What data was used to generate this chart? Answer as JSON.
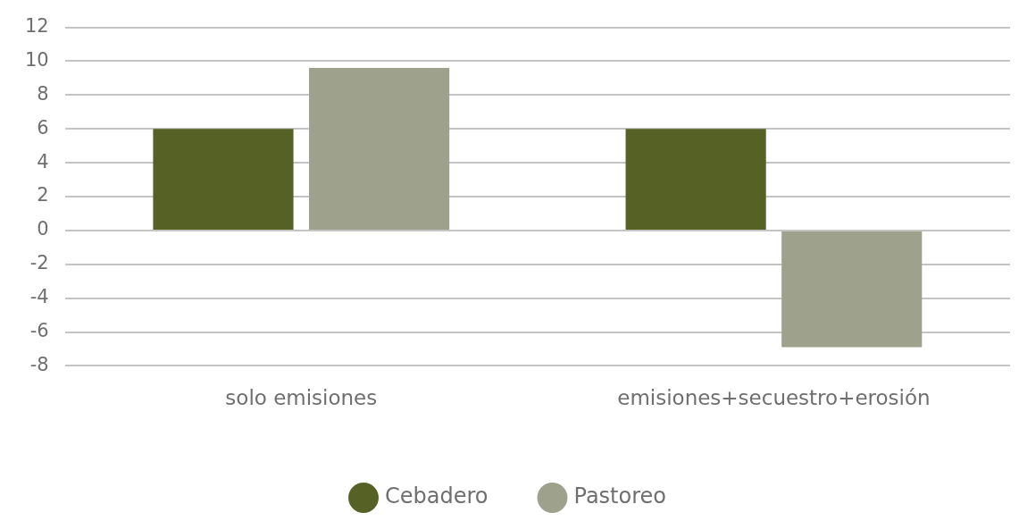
{
  "chart_data": {
    "type": "bar",
    "categories": [
      "solo emisiones",
      "emisiones+secuestro+erosión"
    ],
    "series": [
      {
        "name": "Cebadero",
        "color": "#566225",
        "values": [
          6.0,
          6.0
        ]
      },
      {
        "name": "Pastoreo",
        "color": "#9ea18b",
        "values": [
          9.6,
          -6.9
        ]
      }
    ],
    "ylim": [
      -8,
      12
    ],
    "yticks": [
      -8,
      -6,
      -4,
      -2,
      0,
      2,
      4,
      6,
      8,
      10,
      12
    ],
    "grid": "y",
    "legend": "bottom"
  }
}
